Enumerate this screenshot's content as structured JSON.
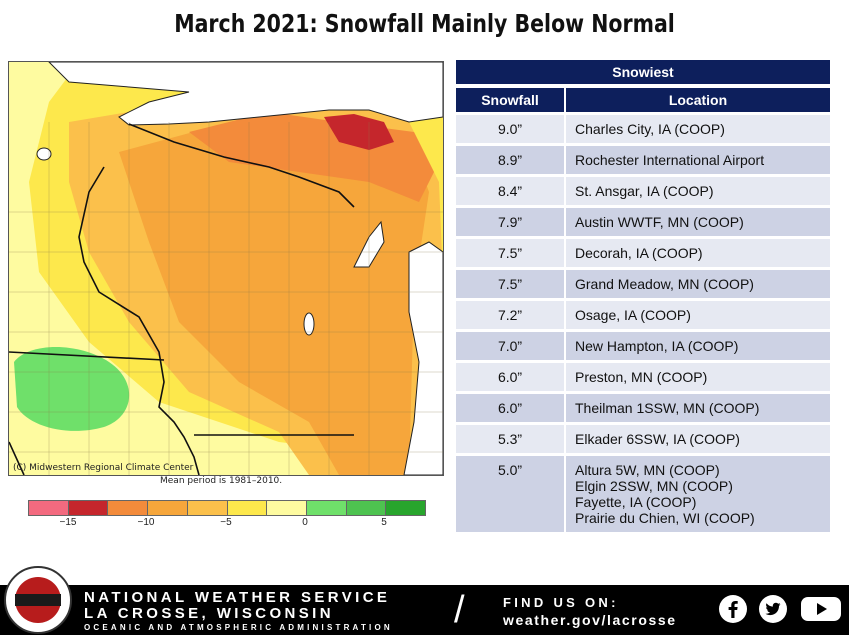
{
  "title": "March 2021:  Snowfall Mainly Below Normal",
  "map": {
    "credit": "(C) Midwestern Regional Climate Center",
    "mean_note": "Mean period is 1981–2010."
  },
  "colorbar": {
    "colors": [
      "#f36a7f",
      "#c5262c",
      "#f38b3b",
      "#f6a63b",
      "#fbc04b",
      "#fde84c",
      "#fefba0",
      "#6fe06a",
      "#4ec350",
      "#28a52d"
    ],
    "ticks": [
      "−15",
      "−10",
      "−5",
      "0",
      "5"
    ]
  },
  "table": {
    "title": "Snowiest",
    "col_snowfall": "Snowfall",
    "col_location": "Location",
    "rows": [
      {
        "snowfall": "9.0”",
        "location": "Charles City, IA (COOP)"
      },
      {
        "snowfall": "8.9”",
        "location": "Rochester International Airport"
      },
      {
        "snowfall": "8.4”",
        "location": "St. Ansgar, IA (COOP)"
      },
      {
        "snowfall": "7.9”",
        "location": "Austin WWTF, MN (COOP)"
      },
      {
        "snowfall": "7.5”",
        "location": "Decorah, IA (COOP)"
      },
      {
        "snowfall": "7.5”",
        "location": "Grand Meadow, MN (COOP)"
      },
      {
        "snowfall": "7.2”",
        "location": "Osage, IA (COOP)"
      },
      {
        "snowfall": "7.0”",
        "location": "New Hampton, IA (COOP)"
      },
      {
        "snowfall": "6.0”",
        "location": "Preston, MN (COOP)"
      },
      {
        "snowfall": "6.0”",
        "location": "Theilman 1SSW, MN (COOP)"
      },
      {
        "snowfall": "5.3”",
        "location": "Elkader 6SSW, IA (COOP)"
      },
      {
        "snowfall": "5.0”",
        "location": "Altura 5W, MN (COOP)",
        "location2": "Elgin 2SSW, MN (COOP)",
        "location3": "Fayette, IA (COOP)",
        "location4": "Prairie du Chien, WI (COOP)"
      }
    ]
  },
  "footer": {
    "line1": "NATIONAL WEATHER SERVICE",
    "line2": "LA CROSSE, WISCONSIN",
    "line3": "OCEANIC AND ATMOSPHERIC ADMINISTRATION",
    "slash": "/",
    "find_us": "FIND US ON:",
    "website": "weather.gov/lacrosse",
    "social_icons": [
      "facebook-icon",
      "twitter-icon",
      "youtube-icon"
    ]
  }
}
